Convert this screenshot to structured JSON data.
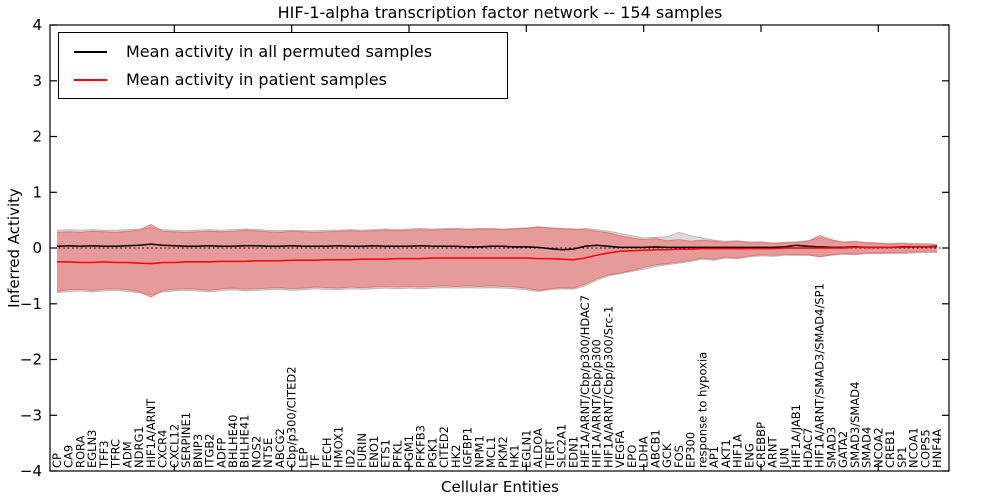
{
  "title": "HIF-1-alpha transcription factor network -- 154 samples",
  "xlabel": "Cellular Entities",
  "ylabel": "Inferred Activity",
  "legend": [
    {
      "label": "Mean activity in all permuted samples",
      "color": "#000000"
    },
    {
      "label": "Mean activity in patient samples",
      "color": "#ff0000"
    }
  ],
  "chart_data": {
    "type": "line",
    "title": "HIF-1-alpha transcription factor network -- 154 samples",
    "xlabel": "Cellular Entities",
    "ylabel": "Inferred Activity",
    "ylim": [
      -4,
      4
    ],
    "yticks": [
      -4,
      -3,
      -2,
      -1,
      0,
      1,
      2,
      3,
      4
    ],
    "x_major_tick_every": 10,
    "grid": false,
    "legend_position": "upper left",
    "zero_line": {
      "y": 0,
      "style": "dotted",
      "color": "#000000"
    },
    "categories": [
      "CP",
      "CA9",
      "RORA",
      "EGLN3",
      "TFF3",
      "TFRC",
      "ADM",
      "NDRG1",
      "HIF1A/ARNT",
      "CXCR4",
      "CXCL12",
      "SERPINE1",
      "BNIP3",
      "ITGB2",
      "ADFP",
      "BHLHE40",
      "BHLHE41",
      "NOS2",
      "NT5E",
      "ABCG2",
      "Cbp/p300/CITED2",
      "LEP",
      "TF",
      "FECH",
      "HMOX1",
      "ID2",
      "FURIN",
      "ENO1",
      "ETS1",
      "PFKL",
      "PGM1",
      "PFKFB3",
      "PGK1",
      "CITED2",
      "HK2",
      "IGFBP1",
      "NPM1",
      "MCL1",
      "PKM2",
      "HK1",
      "EGLN1",
      "ALDOA",
      "TERT",
      "SLC2A1",
      "EDN1",
      "HIF1A/ARNT/Cbp/p300/HDAC7",
      "HIF1A/ARNT/Cbp/p300",
      "HIF1A/ARNT/Cbp/p300/Src-1",
      "VEGFA",
      "EPO",
      "LDHA",
      "ABCB1",
      "GCK",
      "FOS",
      "EP300",
      "response to hypoxia",
      "AP1",
      "AKT1",
      "HIF1A",
      "ENG",
      "CREBBP",
      "ARNT",
      "JUN",
      "HIF1A/JAB1",
      "HDAC7",
      "HIF1A/ARNT/SMAD3/SMAD4/SP1",
      "SMAD3",
      "GATA2",
      "SMAD3/SMAD4",
      "SMAD4",
      "NCOA2",
      "CREB1",
      "SP1",
      "NCOA1",
      "COPS5",
      "HNF4A"
    ],
    "series": [
      {
        "name": "Mean activity in all permuted samples",
        "color": "#000000",
        "values": [
          0.03,
          0.04,
          0.03,
          0.04,
          0.03,
          0.03,
          0.04,
          0.05,
          0.07,
          0.05,
          0.04,
          0.03,
          0.03,
          0.04,
          0.03,
          0.03,
          0.04,
          0.04,
          0.03,
          0.03,
          0.04,
          0.03,
          0.03,
          0.03,
          0.04,
          0.03,
          0.03,
          0.04,
          0.03,
          0.03,
          0.03,
          0.04,
          0.03,
          0.03,
          0.03,
          0.02,
          0.02,
          0.03,
          0.03,
          0.02,
          0.02,
          0.01,
          -0.01,
          -0.03,
          -0.02,
          0.03,
          0.05,
          0.03,
          0.01,
          0.01,
          0.01,
          0.02,
          0.01,
          0.01,
          0.01,
          0.01,
          0.01,
          0.01,
          0.01,
          0.01,
          0.01,
          0.01,
          0.02,
          0.05,
          0.03,
          0.02,
          0.01,
          0.01,
          0.02,
          0.01,
          0.01,
          0.01,
          0.02,
          0.02,
          0.02,
          0.03
        ]
      },
      {
        "name": "Mean activity in patient samples",
        "color": "#ff0000",
        "values": [
          -0.25,
          -0.25,
          -0.26,
          -0.26,
          -0.25,
          -0.26,
          -0.26,
          -0.27,
          -0.28,
          -0.26,
          -0.26,
          -0.25,
          -0.25,
          -0.25,
          -0.24,
          -0.24,
          -0.24,
          -0.23,
          -0.23,
          -0.23,
          -0.22,
          -0.22,
          -0.22,
          -0.21,
          -0.21,
          -0.21,
          -0.2,
          -0.2,
          -0.2,
          -0.19,
          -0.19,
          -0.19,
          -0.18,
          -0.18,
          -0.18,
          -0.18,
          -0.18,
          -0.18,
          -0.18,
          -0.18,
          -0.18,
          -0.19,
          -0.19,
          -0.2,
          -0.21,
          -0.18,
          -0.13,
          -0.09,
          -0.06,
          -0.05,
          -0.04,
          -0.03,
          -0.03,
          -0.02,
          -0.02,
          -0.01,
          -0.01,
          -0.01,
          -0.01,
          -0.01,
          -0.01,
          -0.01,
          0.0,
          0.0,
          0.0,
          0.0,
          0.0,
          0.0,
          0.01,
          0.01,
          0.01,
          0.01,
          0.01,
          0.02,
          0.02,
          0.02
        ]
      }
    ],
    "bands": [
      {
        "name": "permuted-samples-range",
        "fill": "#bebebe",
        "edge": "#ababab",
        "opacity": 0.55,
        "upper": [
          0.32,
          0.33,
          0.32,
          0.33,
          0.32,
          0.32,
          0.33,
          0.34,
          0.36,
          0.33,
          0.32,
          0.31,
          0.32,
          0.33,
          0.32,
          0.33,
          0.34,
          0.33,
          0.32,
          0.31,
          0.32,
          0.31,
          0.31,
          0.32,
          0.32,
          0.33,
          0.32,
          0.33,
          0.34,
          0.33,
          0.34,
          0.35,
          0.34,
          0.35,
          0.35,
          0.34,
          0.35,
          0.35,
          0.34,
          0.35,
          0.36,
          0.37,
          0.35,
          0.34,
          0.33,
          0.35,
          0.33,
          0.3,
          0.26,
          0.22,
          0.18,
          0.19,
          0.2,
          0.28,
          0.22,
          0.18,
          0.14,
          0.12,
          0.13,
          0.11,
          0.11,
          0.09,
          0.1,
          0.11,
          0.13,
          0.18,
          0.13,
          0.11,
          0.11,
          0.1,
          0.09,
          0.08,
          0.09,
          0.08,
          0.08,
          0.07
        ],
        "lower": [
          -0.8,
          -0.78,
          -0.77,
          -0.79,
          -0.77,
          -0.76,
          -0.78,
          -0.8,
          -0.84,
          -0.79,
          -0.77,
          -0.76,
          -0.77,
          -0.79,
          -0.76,
          -0.75,
          -0.77,
          -0.76,
          -0.75,
          -0.74,
          -0.76,
          -0.75,
          -0.73,
          -0.74,
          -0.75,
          -0.73,
          -0.74,
          -0.73,
          -0.72,
          -0.73,
          -0.72,
          -0.73,
          -0.72,
          -0.71,
          -0.72,
          -0.71,
          -0.72,
          -0.71,
          -0.72,
          -0.73,
          -0.75,
          -0.78,
          -0.75,
          -0.73,
          -0.74,
          -0.68,
          -0.58,
          -0.5,
          -0.46,
          -0.42,
          -0.38,
          -0.33,
          -0.3,
          -0.27,
          -0.24,
          -0.2,
          -0.22,
          -0.18,
          -0.19,
          -0.16,
          -0.14,
          -0.15,
          -0.13,
          -0.13,
          -0.13,
          -0.15,
          -0.13,
          -0.11,
          -0.12,
          -0.1,
          -0.1,
          -0.1,
          -0.1,
          -0.09,
          -0.08,
          -0.08
        ]
      },
      {
        "name": "patient-samples-range",
        "fill": "#ee6464",
        "edge": "#e06a6a",
        "opacity": 0.55,
        "upper": [
          0.28,
          0.29,
          0.28,
          0.3,
          0.29,
          0.28,
          0.3,
          0.32,
          0.42,
          0.3,
          0.29,
          0.28,
          0.29,
          0.3,
          0.29,
          0.3,
          0.32,
          0.31,
          0.29,
          0.28,
          0.3,
          0.29,
          0.28,
          0.29,
          0.3,
          0.31,
          0.3,
          0.31,
          0.32,
          0.31,
          0.32,
          0.33,
          0.32,
          0.33,
          0.34,
          0.33,
          0.34,
          0.34,
          0.33,
          0.34,
          0.35,
          0.38,
          0.36,
          0.35,
          0.34,
          0.33,
          0.3,
          0.27,
          0.22,
          0.18,
          0.15,
          0.17,
          0.13,
          0.15,
          0.12,
          0.14,
          0.12,
          0.1,
          0.12,
          0.09,
          0.1,
          0.08,
          0.09,
          0.1,
          0.12,
          0.22,
          0.15,
          0.1,
          0.12,
          0.09,
          0.08,
          0.07,
          0.08,
          0.06,
          0.06,
          0.05
        ],
        "lower": [
          -0.78,
          -0.75,
          -0.74,
          -0.76,
          -0.74,
          -0.73,
          -0.75,
          -0.78,
          -0.88,
          -0.76,
          -0.74,
          -0.73,
          -0.74,
          -0.76,
          -0.73,
          -0.72,
          -0.74,
          -0.73,
          -0.72,
          -0.71,
          -0.73,
          -0.72,
          -0.7,
          -0.71,
          -0.72,
          -0.7,
          -0.71,
          -0.7,
          -0.69,
          -0.7,
          -0.69,
          -0.7,
          -0.69,
          -0.68,
          -0.69,
          -0.68,
          -0.69,
          -0.68,
          -0.69,
          -0.7,
          -0.72,
          -0.76,
          -0.73,
          -0.71,
          -0.72,
          -0.65,
          -0.55,
          -0.48,
          -0.45,
          -0.4,
          -0.35,
          -0.3,
          -0.28,
          -0.25,
          -0.22,
          -0.18,
          -0.2,
          -0.16,
          -0.18,
          -0.14,
          -0.12,
          -0.13,
          -0.11,
          -0.12,
          -0.12,
          -0.16,
          -0.12,
          -0.1,
          -0.11,
          -0.09,
          -0.09,
          -0.08,
          -0.08,
          -0.07,
          -0.06,
          -0.06
        ]
      }
    ]
  }
}
